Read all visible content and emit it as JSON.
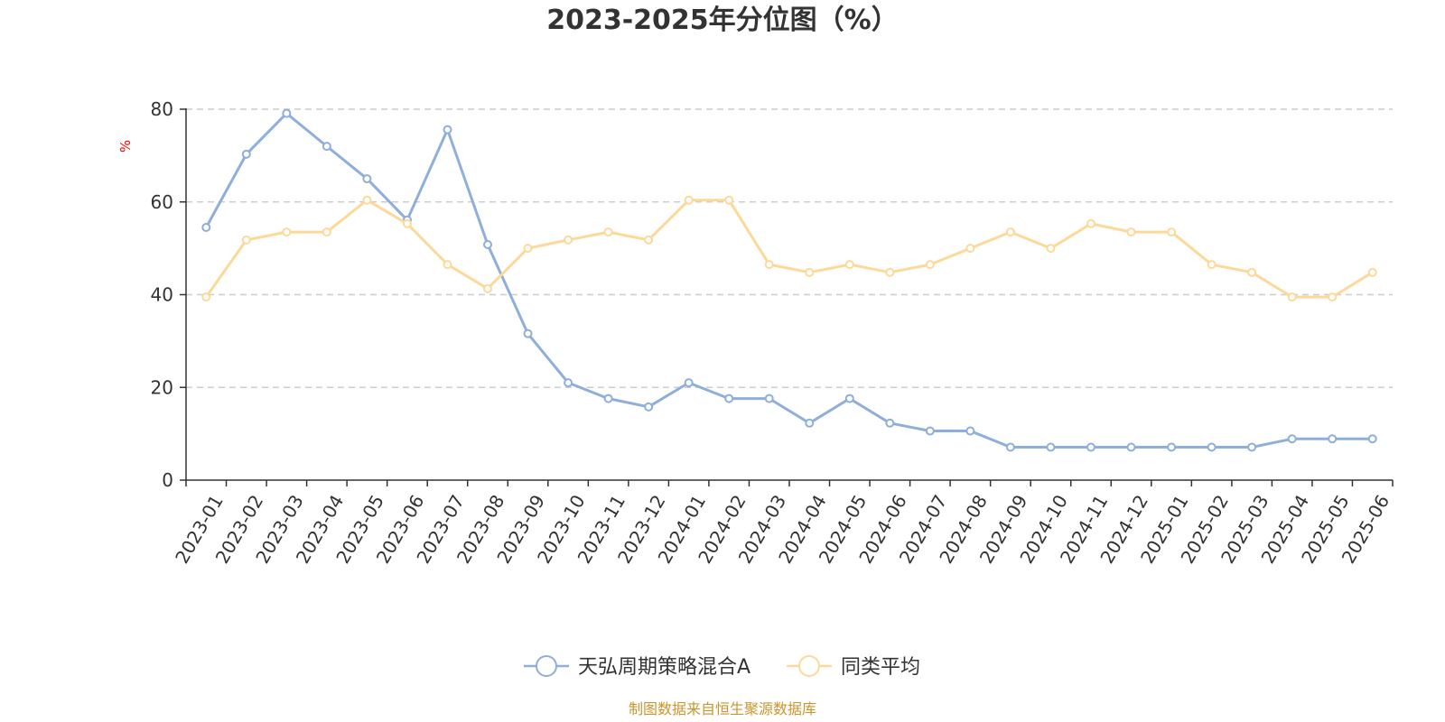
{
  "chart_data": {
    "type": "line",
    "title": "2023-2025年分位图（%）",
    "y_unit_label": "%",
    "ylim": [
      0,
      80
    ],
    "y_ticks": [
      0,
      20,
      40,
      60,
      80
    ],
    "grid": "horizontal dashed",
    "legend_position": "bottom-center",
    "x": [
      "2023-01",
      "2023-02",
      "2023-03",
      "2023-04",
      "2023-05",
      "2023-06",
      "2023-07",
      "2023-08",
      "2023-09",
      "2023-10",
      "2023-11",
      "2023-12",
      "2024-01",
      "2024-02",
      "2024-03",
      "2024-04",
      "2024-05",
      "2024-06",
      "2024-07",
      "2024-08",
      "2024-09",
      "2024-10",
      "2024-11",
      "2024-12",
      "2025-01",
      "2025-02",
      "2025-03",
      "2025-04",
      "2025-05",
      "2025-06"
    ],
    "series": [
      {
        "name": "天弘周期策略混合A",
        "color": "#8eaedb",
        "values": [
          54.5,
          70.3,
          79.1,
          72.0,
          65.0,
          56.1,
          75.6,
          50.8,
          31.6,
          21.0,
          17.6,
          15.8,
          21.0,
          17.6,
          17.6,
          12.3,
          17.6,
          12.3,
          10.6,
          10.6,
          7.1,
          7.1,
          7.1,
          7.1,
          7.1,
          7.1,
          7.1,
          8.9,
          8.9,
          8.9
        ]
      },
      {
        "name": "同类平均",
        "color": "#fdd999",
        "values": [
          39.5,
          51.8,
          53.5,
          53.5,
          60.4,
          55.3,
          46.5,
          41.3,
          50.0,
          51.8,
          53.5,
          51.8,
          60.4,
          60.4,
          46.5,
          44.8,
          46.5,
          44.8,
          46.5,
          50.0,
          53.5,
          50.0,
          55.3,
          53.5,
          53.5,
          46.5,
          44.8,
          39.5,
          39.5,
          44.8
        ]
      }
    ]
  },
  "colors": {
    "axis": "#333333",
    "grid": "#cccccc",
    "unit_label": "#ff0000",
    "source_text": "#c8962e"
  },
  "source_note": "制图数据来自恒生聚源数据库"
}
